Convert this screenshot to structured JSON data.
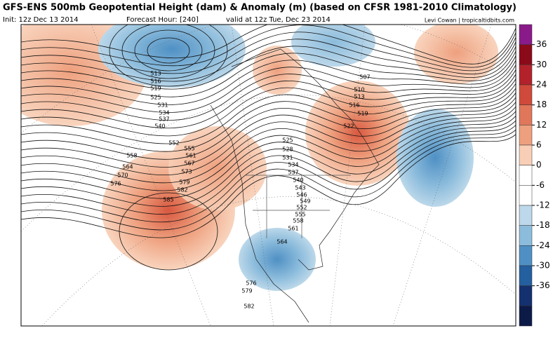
{
  "header": {
    "title": "GFS-ENS 500mb Geopotential Height (dam) & Anomaly (m) (based on CFSR 1981-2010 Climatology)",
    "init": "Init: 12z Dec 13 2014",
    "forecast": "Forecast Hour: [240]",
    "valid": "valid at 12z Tue, Dec 23 2014",
    "credit": "Levi Cowan | tropicaltidbits.com"
  },
  "colorbar": {
    "ticks": [
      36,
      30,
      24,
      18,
      12,
      6,
      0,
      -6,
      -12,
      -18,
      -24,
      -30,
      -36
    ],
    "colors": [
      "#8a1a8a",
      "#8b0a1a",
      "#b3222b",
      "#cf4a3a",
      "#e0765a",
      "#eea07e",
      "#f8cfb6",
      "#ffffff",
      "#ffffff",
      "#bcd8ea",
      "#8cbcdc",
      "#4f90c4",
      "#245f9f",
      "#14306e",
      "#0c1a48"
    ]
  },
  "contour_labels": [
    513,
    516,
    519,
    525,
    531,
    534,
    537,
    540,
    552,
    555,
    558,
    561,
    567,
    564,
    573,
    570,
    576,
    579,
    582,
    585,
    507,
    510,
    513,
    516,
    519,
    522,
    525,
    528,
    531,
    534,
    537,
    540,
    543,
    546,
    549,
    552,
    555,
    558,
    561,
    564,
    576,
    579,
    582
  ]
}
